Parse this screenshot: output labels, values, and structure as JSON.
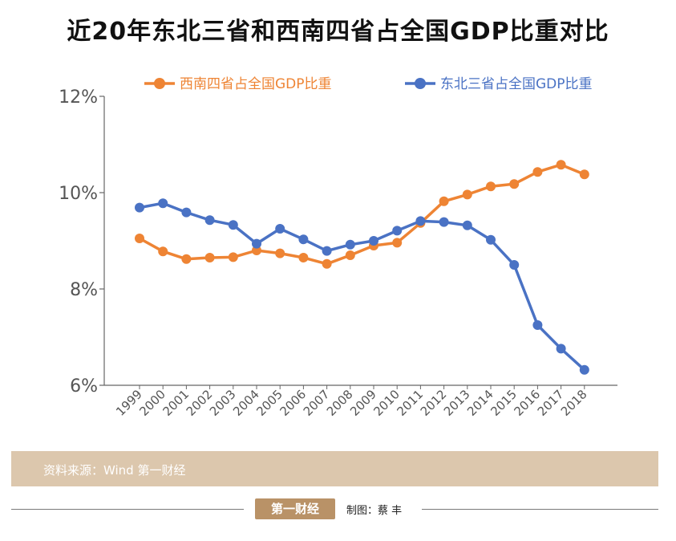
{
  "title": "近20年东北三省和西南四省占全国GDP比重对比",
  "source": "资料来源：Wind 第一财经",
  "footer": {
    "logo": "第一财经",
    "credit": "制图：蔡 丰"
  },
  "colors": {
    "southwest": "#ee8434",
    "northeast": "#4a72c4"
  },
  "chart_data": {
    "type": "line",
    "title": "近20年东北三省和西南四省占全国GDP比重对比",
    "xlabel": "",
    "ylabel": "",
    "x": [
      "1999",
      "2000",
      "2001",
      "2002",
      "2003",
      "2004",
      "2005",
      "2006",
      "2007",
      "2008",
      "2009",
      "2010",
      "2011",
      "2012",
      "2013",
      "2014",
      "2015",
      "2016",
      "2017",
      "2018"
    ],
    "ylim": [
      6,
      12
    ],
    "yticks": [
      6,
      8,
      10,
      12
    ],
    "ytick_labels": [
      "6%",
      "8%",
      "10%",
      "12%"
    ],
    "grid": false,
    "legend_position": "top",
    "series": [
      {
        "name": "西南四省占全国GDP比重",
        "color": "#ee8434",
        "values": [
          9.05,
          8.78,
          8.62,
          8.65,
          8.66,
          8.8,
          8.74,
          8.65,
          8.52,
          8.7,
          8.9,
          8.96,
          9.37,
          9.82,
          9.96,
          10.13,
          10.18,
          10.43,
          10.58,
          10.38
        ]
      },
      {
        "name": "东北三省占全国GDP比重",
        "color": "#4a72c4",
        "values": [
          9.69,
          9.78,
          9.59,
          9.43,
          9.33,
          8.94,
          9.25,
          9.03,
          8.79,
          8.92,
          9.0,
          9.21,
          9.41,
          9.39,
          9.32,
          9.02,
          8.5,
          7.25,
          6.76,
          6.32
        ]
      }
    ]
  }
}
